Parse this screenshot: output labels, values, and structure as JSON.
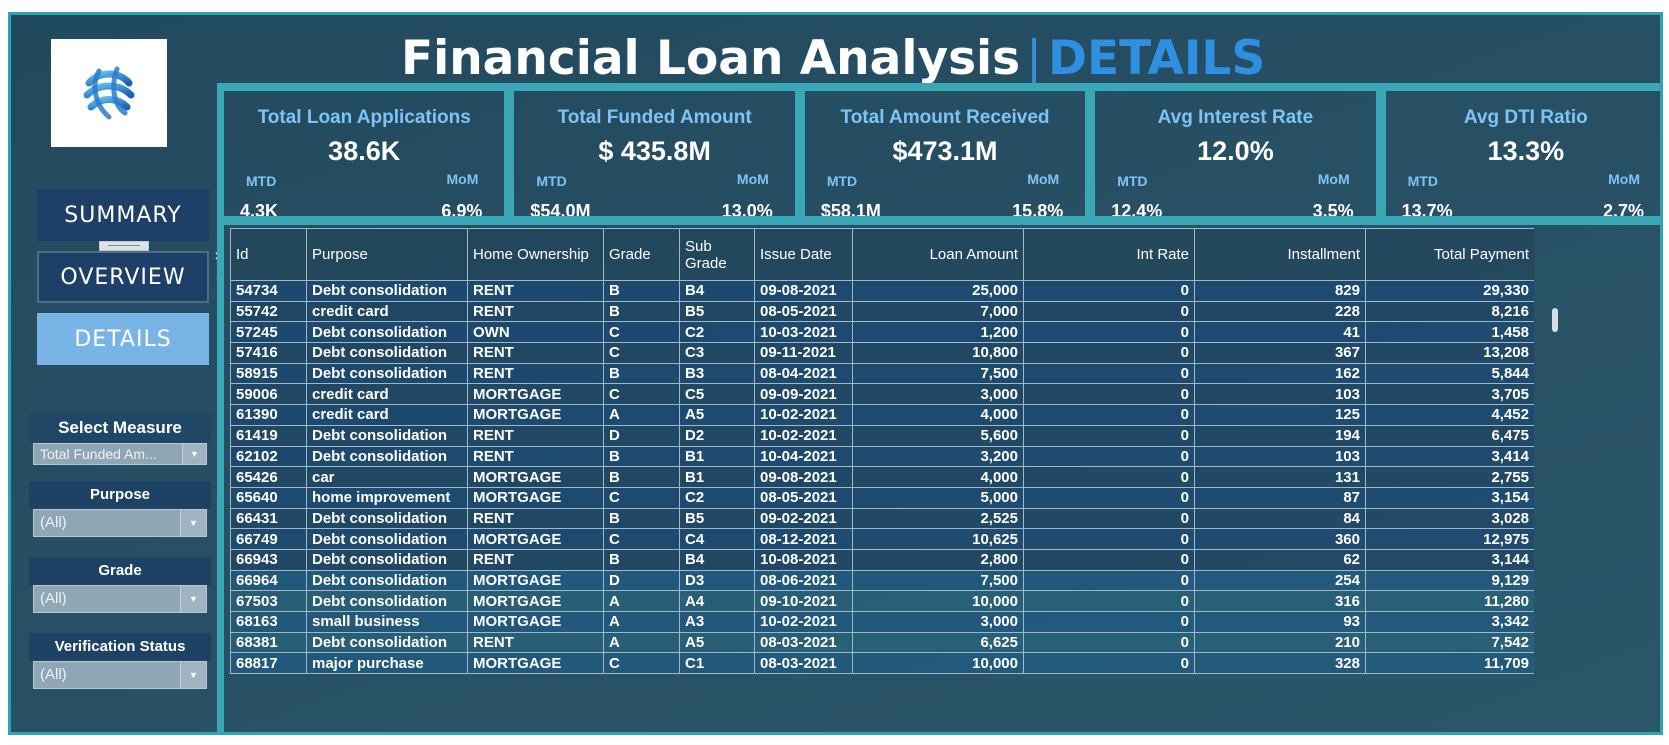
{
  "header": {
    "title_main": "Financial Loan Analysis",
    "title_sep": "|",
    "title_accent": "DETAILS"
  },
  "colors": {
    "background": "#274f64",
    "frame": "#3aa7b6",
    "accent_blue": "#2f8fe0",
    "kpi_label": "#7fc3f4",
    "nav_active": "#79b4e6",
    "nav_inactive": "#1d3f68"
  },
  "nav": {
    "summary": "SUMMARY",
    "overview": "OVERVIEW",
    "details": "DETAILS",
    "close_icon": "×",
    "chevron_icon": "▾"
  },
  "filters": {
    "measure": {
      "title": "Select Measure",
      "value": "Total Funded Am..."
    },
    "purpose": {
      "title": "Purpose",
      "value": "(All)"
    },
    "grade": {
      "title": "Grade",
      "value": "(All)"
    },
    "verification": {
      "title": "Verification Status",
      "value": "(All)"
    }
  },
  "kpis": [
    {
      "title": "Total Loan Applications",
      "value": "38.6K",
      "mtd_label": "MTD",
      "mom_label": "MoM",
      "mtd": "4.3K",
      "mom": "6.9%"
    },
    {
      "title": "Total Funded Amount",
      "value": "$ 435.8M",
      "mtd_label": "MTD",
      "mom_label": "MoM",
      "mtd": "$54.0M",
      "mom": "13.0%"
    },
    {
      "title": "Total Amount Received",
      "value": "$473.1M",
      "mtd_label": "MTD",
      "mom_label": "MoM",
      "mtd": "$58.1M",
      "mom": "15.8%"
    },
    {
      "title": "Avg Interest Rate",
      "value": "12.0%",
      "mtd_label": "MTD",
      "mom_label": "MoM",
      "mtd": "12.4%",
      "mom": "3.5%"
    },
    {
      "title": "Avg DTI Ratio",
      "value": "13.3%",
      "mtd_label": "MTD",
      "mom_label": "MoM",
      "mtd": "13.7%",
      "mom": "2.7%"
    }
  ],
  "table": {
    "columns": [
      "Id",
      "Purpose",
      "Home Ownership",
      "Grade",
      "Sub Grade",
      "Issue Date",
      "Loan Amount",
      "Int Rate",
      "Installment",
      "Total Payment"
    ],
    "rows": [
      [
        "54734",
        "Debt consolidation",
        "RENT",
        "B",
        "B4",
        "09-08-2021",
        "25,000",
        "0",
        "829",
        "29,330"
      ],
      [
        "55742",
        "credit card",
        "RENT",
        "B",
        "B5",
        "08-05-2021",
        "7,000",
        "0",
        "228",
        "8,216"
      ],
      [
        "57245",
        "Debt consolidation",
        "OWN",
        "C",
        "C2",
        "10-03-2021",
        "1,200",
        "0",
        "41",
        "1,458"
      ],
      [
        "57416",
        "Debt consolidation",
        "RENT",
        "C",
        "C3",
        "09-11-2021",
        "10,800",
        "0",
        "367",
        "13,208"
      ],
      [
        "58915",
        "Debt consolidation",
        "RENT",
        "B",
        "B3",
        "08-04-2021",
        "7,500",
        "0",
        "162",
        "5,844"
      ],
      [
        "59006",
        "credit card",
        "MORTGAGE",
        "C",
        "C5",
        "09-09-2021",
        "3,000",
        "0",
        "103",
        "3,705"
      ],
      [
        "61390",
        "credit card",
        "MORTGAGE",
        "A",
        "A5",
        "10-02-2021",
        "4,000",
        "0",
        "125",
        "4,452"
      ],
      [
        "61419",
        "Debt consolidation",
        "RENT",
        "D",
        "D2",
        "10-02-2021",
        "5,600",
        "0",
        "194",
        "6,475"
      ],
      [
        "62102",
        "Debt consolidation",
        "RENT",
        "B",
        "B1",
        "10-04-2021",
        "3,200",
        "0",
        "103",
        "3,414"
      ],
      [
        "65426",
        "car",
        "MORTGAGE",
        "B",
        "B1",
        "09-08-2021",
        "4,000",
        "0",
        "131",
        "2,755"
      ],
      [
        "65640",
        "home improvement",
        "MORTGAGE",
        "C",
        "C2",
        "08-05-2021",
        "5,000",
        "0",
        "87",
        "3,154"
      ],
      [
        "66431",
        "Debt consolidation",
        "RENT",
        "B",
        "B5",
        "09-02-2021",
        "2,525",
        "0",
        "84",
        "3,028"
      ],
      [
        "66749",
        "Debt consolidation",
        "MORTGAGE",
        "C",
        "C4",
        "08-12-2021",
        "10,625",
        "0",
        "360",
        "12,975"
      ],
      [
        "66943",
        "Debt consolidation",
        "RENT",
        "B",
        "B4",
        "10-08-2021",
        "2,800",
        "0",
        "62",
        "3,144"
      ],
      [
        "66964",
        "Debt consolidation",
        "MORTGAGE",
        "D",
        "D3",
        "08-06-2021",
        "7,500",
        "0",
        "254",
        "9,129"
      ],
      [
        "67503",
        "Debt consolidation",
        "MORTGAGE",
        "A",
        "A4",
        "09-10-2021",
        "10,000",
        "0",
        "316",
        "11,280"
      ],
      [
        "68163",
        "small business",
        "MORTGAGE",
        "A",
        "A3",
        "10-02-2021",
        "3,000",
        "0",
        "93",
        "3,342"
      ],
      [
        "68381",
        "Debt consolidation",
        "RENT",
        "A",
        "A5",
        "08-03-2021",
        "6,625",
        "0",
        "210",
        "7,542"
      ],
      [
        "68817",
        "major purchase",
        "MORTGAGE",
        "C",
        "C1",
        "08-03-2021",
        "10,000",
        "0",
        "328",
        "11,709"
      ]
    ]
  }
}
